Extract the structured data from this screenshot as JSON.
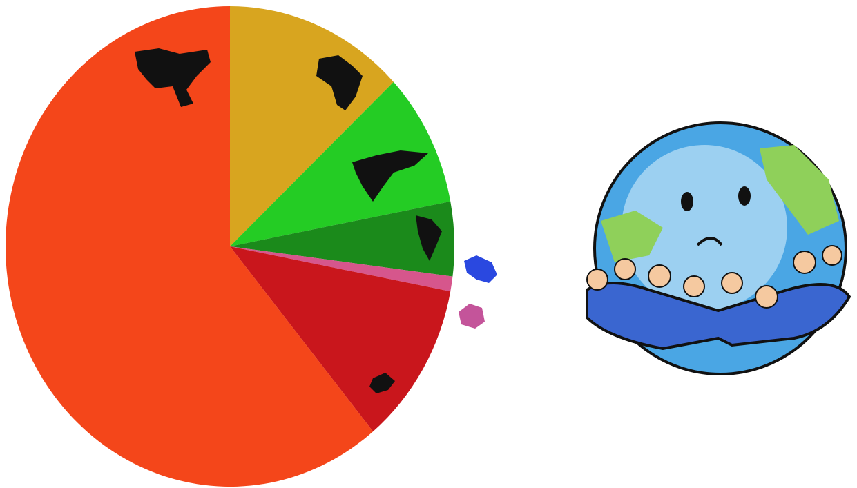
{
  "chart_data": {
    "type": "pie",
    "values": [
      13,
      9,
      5,
      1,
      11,
      61
    ],
    "colors": [
      "#d8a51f",
      "#24cc24",
      "#1b8a1b",
      "#d6568c",
      "#c9161c",
      "#f4461a"
    ]
  }
}
